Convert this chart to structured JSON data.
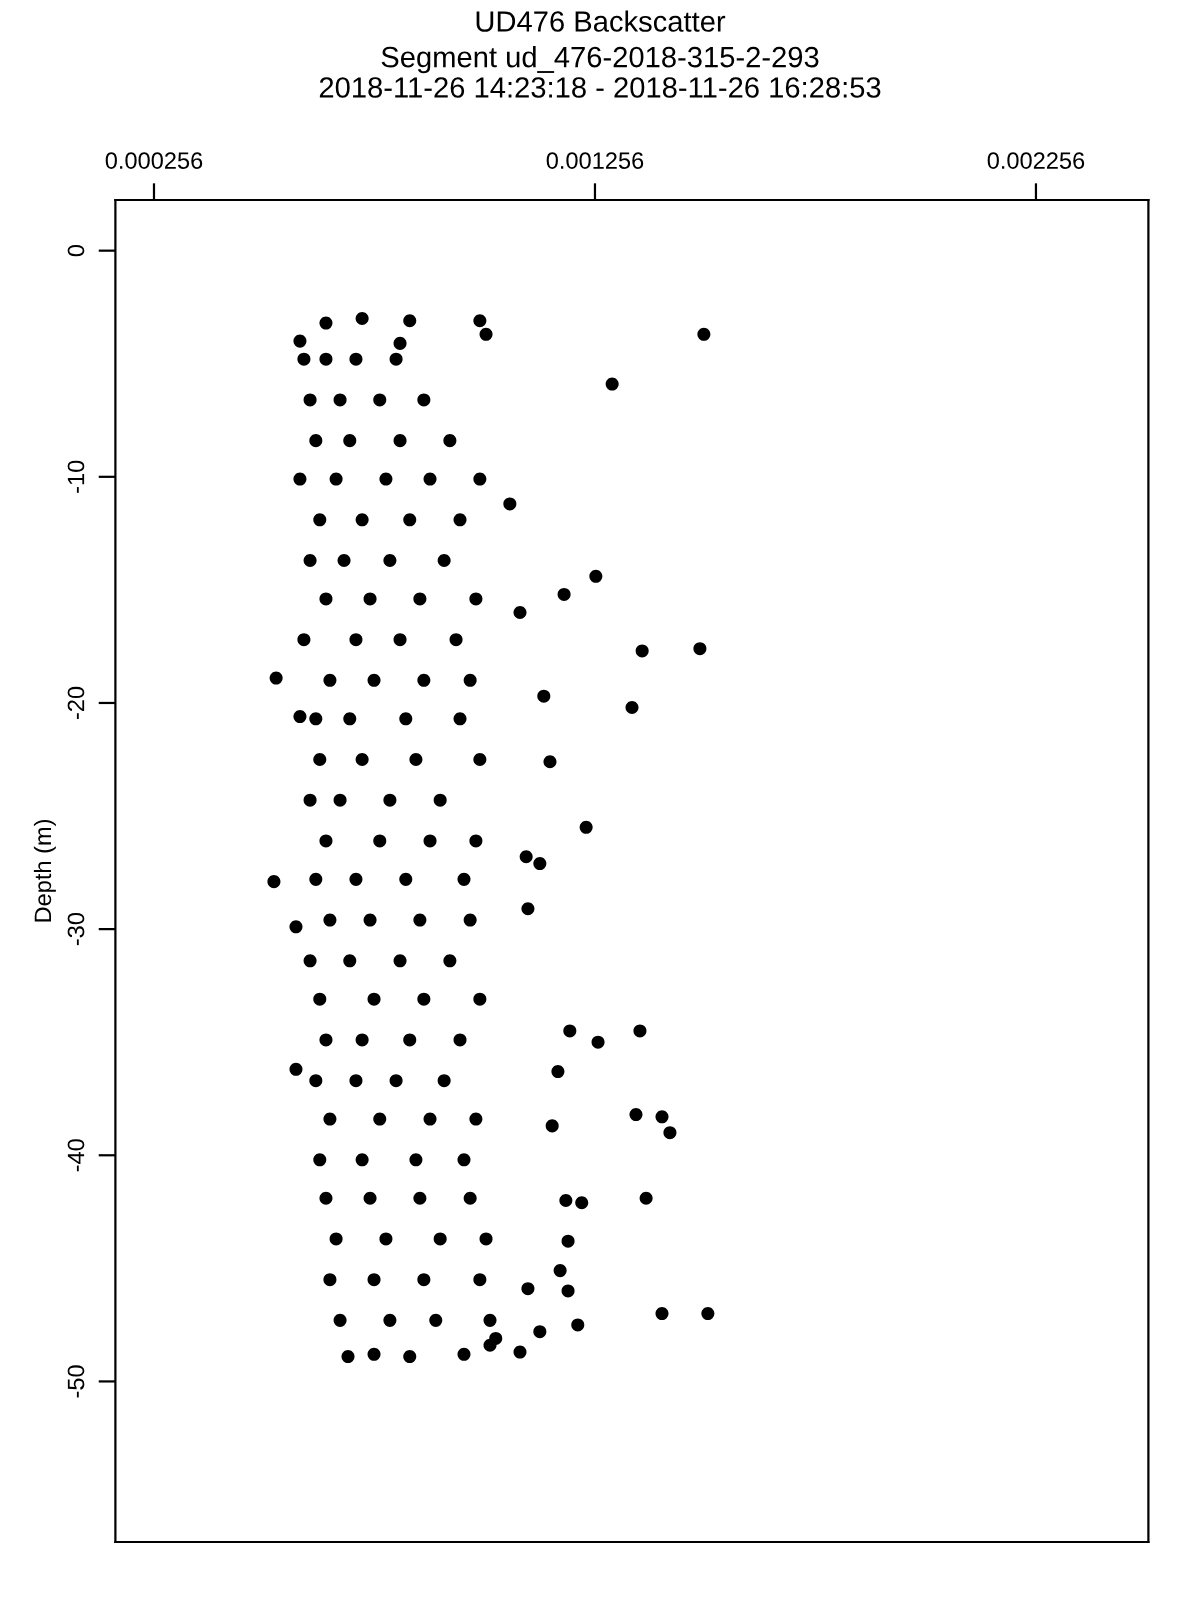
{
  "chart_data": {
    "type": "scatter",
    "title": "UD476 Backscatter",
    "subtitle": "Segment ud_476-2018-315-2-293\n2018-11-26 14:23:18 - 2018-11-26 16:28:53",
    "ylabel": "Depth (m)",
    "xlim": [
      0.0001685,
      0.002511
    ],
    "ylim": [
      -57.1,
      2.24
    ],
    "xticks": [
      0.000256,
      0.001256,
      0.002256
    ],
    "yticks": [
      0,
      -10,
      -20,
      -30,
      -40,
      -50
    ],
    "color": "#000000",
    "marker": "circle",
    "grid": false,
    "legend": false,
    "x": [
      0.000646,
      0.000728,
      0.000836,
      0.000995,
      0.001009,
      0.000814,
      0.000587,
      0.000696,
      0.000755,
      0.000836,
      0.000959,
      0.001086,
      0.001031,
      0.001503,
      0.001295,
      0.001258,
      0.001494,
      0.001363,
      0.00134,
      0.001186,
      0.001086,
      0.001236,
      0.001199,
      0.001263,
      0.001358,
      0.001349,
      0.001408,
      0.001426,
      0.001372,
      0.001226,
      0.001408,
      0.001512,
      0.001217,
      0.001131,
      0.001018,
      0.000995,
      0.001063,
      0.00114,
      0.001154,
      0.0011,
      0.001131,
      0.001104,
      0.001172,
      0.001159,
      0.00119,
      0.001195,
      0.001195,
      0.001104,
      0.001177,
      0.000533,
      0.000528,
      0.000578,
      0.000578,
      0.000587,
      0.000596,
      0.000646,
      0.000714,
      0.000805,
      0.00061,
      0.000678,
      0.000768,
      0.000868,
      0.000623,
      0.0007,
      0.000814,
      0.000927,
      0.000587,
      0.000669,
      0.000782,
      0.000882,
      0.000632,
      0.000728,
      0.000836,
      0.00095,
      0.00061,
      0.000687,
      0.000791,
      0.000914,
      0.000646,
      0.000746,
      0.000859,
      0.000986,
      0.000596,
      0.000714,
      0.000814,
      0.000941,
      0.000655,
      0.000755,
      0.000868,
      0.000973,
      0.000623,
      0.0007,
      0.000827,
      0.00095,
      0.000632,
      0.000728,
      0.00085,
      0.000995,
      0.00061,
      0.000678,
      0.000791,
      0.000905,
      0.000646,
      0.000768,
      0.000882,
      0.000986,
      0.000623,
      0.000714,
      0.000827,
      0.000959,
      0.000655,
      0.000746,
      0.000859,
      0.000973,
      0.00061,
      0.0007,
      0.000814,
      0.000927,
      0.000632,
      0.000755,
      0.000868,
      0.000995,
      0.000646,
      0.000728,
      0.000836,
      0.00095,
      0.000623,
      0.000714,
      0.000805,
      0.000914,
      0.000655,
      0.000768,
      0.000882,
      0.000986,
      0.000632,
      0.000728,
      0.00085,
      0.000959,
      0.000646,
      0.000746,
      0.000859,
      0.000973,
      0.000669,
      0.000782,
      0.000905,
      0.001009,
      0.000655,
      0.000755,
      0.000868,
      0.000995,
      0.000678,
      0.000791,
      0.000895,
      0.001018
    ],
    "values": [
      -3.2,
      -3.0,
      -3.1,
      -3.1,
      -3.7,
      -4.1,
      -4.0,
      -48.9,
      -48.8,
      -48.9,
      -48.8,
      -48.7,
      -48.1,
      -3.7,
      -5.9,
      -14.4,
      -17.6,
      -17.7,
      -20.2,
      -15.2,
      -16.0,
      -25.5,
      -34.5,
      -35.0,
      -34.5,
      -38.2,
      -38.3,
      -39.0,
      -41.9,
      -42.1,
      -47.0,
      -47.0,
      -47.5,
      -47.8,
      -48.4,
      -10.1,
      -11.2,
      -19.7,
      -22.6,
      -26.8,
      -27.1,
      -29.1,
      -36.3,
      -38.7,
      -42.0,
      -43.8,
      -46.0,
      -45.9,
      -45.1,
      -18.9,
      -27.9,
      -36.2,
      -29.9,
      -20.6,
      -4.8,
      -4.8,
      -4.8,
      -4.8,
      -6.6,
      -6.6,
      -6.6,
      -6.6,
      -8.4,
      -8.4,
      -8.4,
      -8.4,
      -10.1,
      -10.1,
      -10.1,
      -10.1,
      -11.9,
      -11.9,
      -11.9,
      -11.9,
      -13.7,
      -13.7,
      -13.7,
      -13.7,
      -15.4,
      -15.4,
      -15.4,
      -15.4,
      -17.2,
      -17.2,
      -17.2,
      -17.2,
      -19.0,
      -19.0,
      -19.0,
      -19.0,
      -20.7,
      -20.7,
      -20.7,
      -20.7,
      -22.5,
      -22.5,
      -22.5,
      -22.5,
      -24.3,
      -24.3,
      -24.3,
      -24.3,
      -26.1,
      -26.1,
      -26.1,
      -26.1,
      -27.8,
      -27.8,
      -27.8,
      -27.8,
      -29.6,
      -29.6,
      -29.6,
      -29.6,
      -31.4,
      -31.4,
      -31.4,
      -31.4,
      -33.1,
      -33.1,
      -33.1,
      -33.1,
      -34.9,
      -34.9,
      -34.9,
      -34.9,
      -36.7,
      -36.7,
      -36.7,
      -36.7,
      -38.4,
      -38.4,
      -38.4,
      -38.4,
      -40.2,
      -40.2,
      -40.2,
      -40.2,
      -41.9,
      -41.9,
      -41.9,
      -41.9,
      -43.7,
      -43.7,
      -43.7,
      -43.7,
      -45.5,
      -45.5,
      -45.5,
      -45.5,
      -47.3,
      -47.3,
      -47.3,
      -47.3
    ]
  }
}
